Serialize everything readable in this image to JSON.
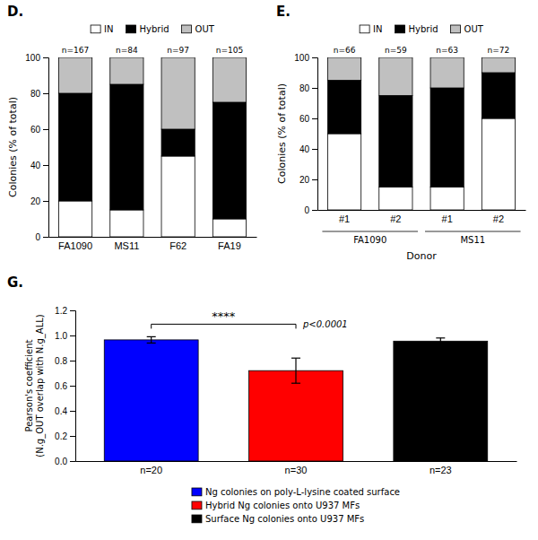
{
  "chart_data": [
    {
      "type": "bar",
      "title": "D.",
      "stacked": true,
      "categories": [
        "FA1090",
        "MS11",
        "F62",
        "FA19"
      ],
      "series": [
        {
          "name": "IN",
          "color": "#ffffff",
          "values": [
            20,
            15,
            45,
            10
          ]
        },
        {
          "name": "Hybrid",
          "color": "#000000",
          "values": [
            60,
            70,
            15,
            65
          ]
        },
        {
          "name": "OUT",
          "color": "#c0c0c0",
          "values": [
            20,
            15,
            40,
            25
          ]
        }
      ],
      "annotations": [
        "n=167",
        "n=84",
        "n=97",
        "n=105"
      ],
      "ylabel": "Colonies (% of total)",
      "ylim": [
        0,
        100
      ],
      "yticks": [
        0,
        20,
        40,
        60,
        80,
        100
      ],
      "grid": false,
      "legend": "top"
    },
    {
      "type": "bar",
      "title": "E.",
      "stacked": true,
      "categories": [
        "#1",
        "#2",
        "#1",
        "#2"
      ],
      "groups": [
        "FA1090",
        "FA1090",
        "MS11",
        "MS11"
      ],
      "series": [
        {
          "name": "IN",
          "color": "#ffffff",
          "values": [
            50,
            15,
            15,
            60
          ]
        },
        {
          "name": "Hybrid",
          "color": "#000000",
          "values": [
            35,
            60,
            65,
            30
          ]
        },
        {
          "name": "OUT",
          "color": "#c0c0c0",
          "values": [
            15,
            25,
            20,
            10
          ]
        }
      ],
      "annotations": [
        "n=66",
        "n=59",
        "n=63",
        "n=72"
      ],
      "xlabel": "Donor",
      "ylabel": "Colonies (% of total)",
      "ylim": [
        0,
        100
      ],
      "yticks": [
        0,
        20,
        40,
        60,
        80,
        100
      ],
      "grid": false,
      "legend": "top"
    },
    {
      "type": "bar",
      "title": "G.",
      "categories": [
        "n=20",
        "n=30",
        "n=23"
      ],
      "values": [
        0.965,
        0.72,
        0.955
      ],
      "errors": [
        0.025,
        0.1,
        0.025
      ],
      "colors": [
        "#0000ff",
        "#ff0000",
        "#000000"
      ],
      "legend_labels": [
        "Ng colonies on poly-L-lysine coated surface",
        "Hybrid Ng colonies onto U937 MFs",
        "Surface Ng colonies onto U937 MFs"
      ],
      "annotations": [
        {
          "text": "****",
          "between": [
            "n=20",
            "n=30"
          ]
        },
        {
          "text": "p<0.0001",
          "between": [
            "n=20",
            "n=30"
          ]
        }
      ],
      "ylabel": "Pearson's coefficient\n(N.g_OUT overlap with N.g_ALL)",
      "ylim": [
        0,
        1.2
      ],
      "yticks": [
        {
          "value": 0,
          "label": "0.0"
        },
        0.2,
        0.4,
        0.6,
        0.8,
        {
          "value": 1.0,
          "label": "1.0"
        },
        1.2
      ],
      "grid": false,
      "legend": "bottom"
    }
  ]
}
